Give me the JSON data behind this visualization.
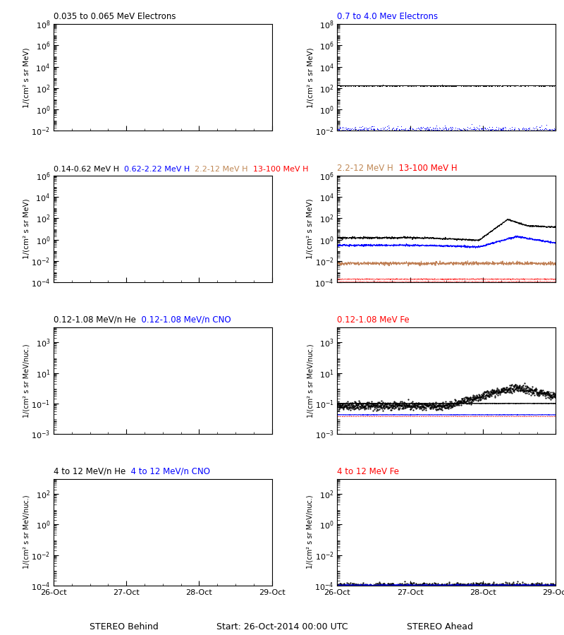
{
  "seed": 42,
  "xtick_labels": [
    "26-Oct",
    "27-Oct",
    "28-Oct",
    "29-Oct"
  ],
  "xlabel_bottom": "Start: 26-Oct-2014 00:00 UTC",
  "xlabel_left": "STEREO Behind",
  "xlabel_right": "STEREO Ahead",
  "row0_left_title": [
    [
      "0.035 to 0.065 MeV Electrons",
      "black"
    ]
  ],
  "row0_right_title": [
    [
      "0.7 to 4.0 Mev Electrons",
      "blue"
    ]
  ],
  "row1_left_title": [
    [
      "0.14-0.62 MeV H",
      "black"
    ],
    [
      "  0.62-2.22 MeV H",
      "blue"
    ],
    [
      "  2.2-12 MeV H",
      "#c08855"
    ],
    [
      "  13-100 MeV H",
      "red"
    ]
  ],
  "row1_right_title": [
    [
      "2.2-12 MeV H",
      "#c08855"
    ],
    [
      "  13-100 MeV H",
      "red"
    ]
  ],
  "row2_left_title": [
    [
      "0.12-1.08 MeV/n He",
      "black"
    ],
    [
      "  0.12-1.08 MeV/n CNO",
      "blue"
    ]
  ],
  "row2_right_title": [
    [
      "0.12-1.08 MeV Fe",
      "red"
    ]
  ],
  "row3_left_title": [
    [
      "4 to 12 MeV/n He",
      "black"
    ],
    [
      "  4 to 12 MeV/n CNO",
      "blue"
    ]
  ],
  "row3_right_title": [
    [
      "4 to 12 MeV Fe",
      "red"
    ]
  ],
  "brown_color": "#b87040",
  "row0_ylim": [
    0.01,
    100000000.0
  ],
  "row0_yticks": [
    0.01,
    1.0,
    100.0,
    10000.0,
    1000000.0,
    100000000.0
  ],
  "row1_ylim": [
    0.0001,
    1000000.0
  ],
  "row1_yticks": [
    0.0001,
    0.01,
    1.0,
    100.0,
    10000.0,
    1000000.0
  ],
  "row2_ylim": [
    0.001,
    10000.0
  ],
  "row2_yticks": [
    0.001,
    0.1,
    10.0,
    1000.0
  ],
  "row3_ylim": [
    0.0001,
    1000.0
  ],
  "row3_yticks": [
    0.0001,
    0.01,
    1.0,
    100.0
  ]
}
